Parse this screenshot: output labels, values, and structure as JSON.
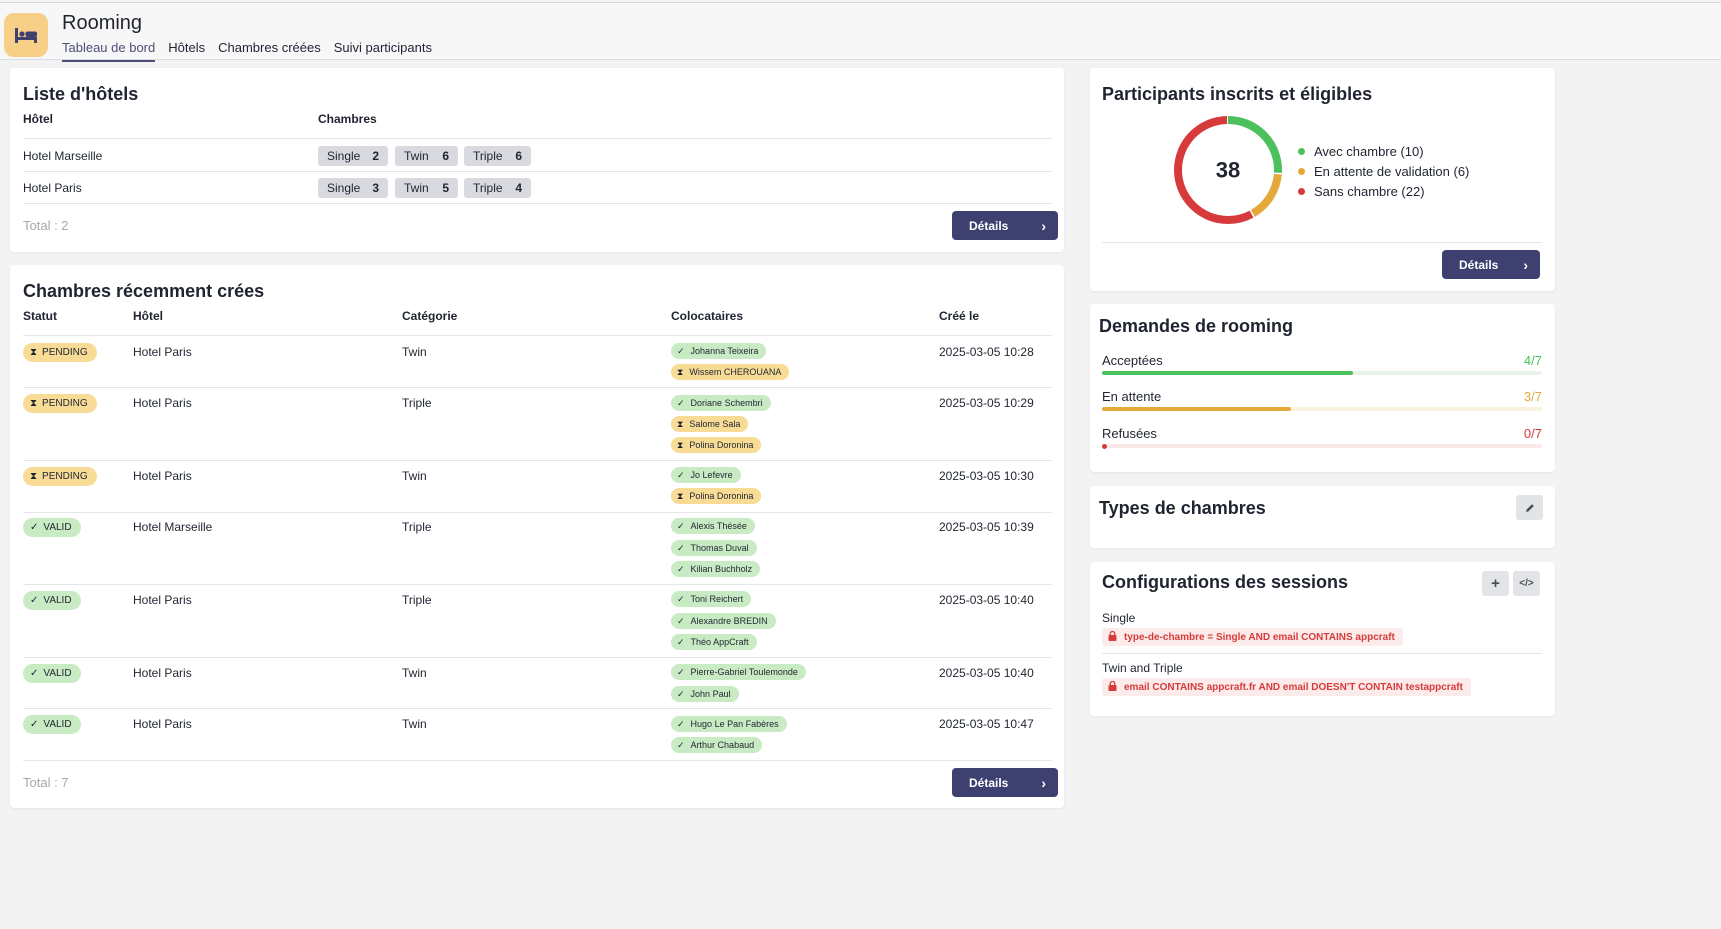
{
  "app": {
    "title": "Rooming",
    "tabs": [
      "Tableau de bord",
      "Hôtels",
      "Chambres créées",
      "Suivi participants"
    ]
  },
  "hotels_card": {
    "title": "Liste d'hôtels",
    "col_hotel": "Hôtel",
    "col_rooms": "Chambres",
    "rows": [
      {
        "name": "Hotel Marseille",
        "rooms": [
          {
            "type": "Single",
            "count": "2"
          },
          {
            "type": "Twin",
            "count": "6"
          },
          {
            "type": "Triple",
            "count": "6"
          }
        ]
      },
      {
        "name": "Hotel Paris",
        "rooms": [
          {
            "type": "Single",
            "count": "3"
          },
          {
            "type": "Twin",
            "count": "5"
          },
          {
            "type": "Triple",
            "count": "4"
          }
        ]
      }
    ],
    "total": "Total : 2",
    "details_label": "Détails"
  },
  "recent_card": {
    "title": "Chambres récemment crées",
    "col_status": "Statut",
    "col_hotel": "Hôtel",
    "col_category": "Catégorie",
    "col_mates": "Colocataires",
    "col_created": "Créé le",
    "rows": [
      {
        "status": "PENDING",
        "hotel": "Hotel Paris",
        "category": "Twin",
        "created": "2025-03-05 10:28",
        "mates": [
          {
            "name": "Johanna Teixeira",
            "state": "ok"
          },
          {
            "name": "Wissem CHEROUANA",
            "state": "wait"
          }
        ]
      },
      {
        "status": "PENDING",
        "hotel": "Hotel Paris",
        "category": "Triple",
        "created": "2025-03-05 10:29",
        "mates": [
          {
            "name": "Doriane Schembri",
            "state": "ok"
          },
          {
            "name": "Salome Sala",
            "state": "wait"
          },
          {
            "name": "Polina Doronina",
            "state": "wait"
          }
        ]
      },
      {
        "status": "PENDING",
        "hotel": "Hotel Paris",
        "category": "Twin",
        "created": "2025-03-05 10:30",
        "mates": [
          {
            "name": "Jo Lefevre",
            "state": "ok"
          },
          {
            "name": "Polina Doronina",
            "state": "wait"
          }
        ]
      },
      {
        "status": "VALID",
        "hotel": "Hotel Marseille",
        "category": "Triple",
        "created": "2025-03-05 10:39",
        "mates": [
          {
            "name": "Alexis Thésée",
            "state": "ok"
          },
          {
            "name": "Thomas Duval",
            "state": "ok"
          },
          {
            "name": "Kilian Buchholz",
            "state": "ok"
          }
        ]
      },
      {
        "status": "VALID",
        "hotel": "Hotel Paris",
        "category": "Triple",
        "created": "2025-03-05 10:40",
        "mates": [
          {
            "name": "Toni Reichert",
            "state": "ok"
          },
          {
            "name": "Alexandre BREDIN",
            "state": "ok"
          },
          {
            "name": "Théo AppCraft",
            "state": "ok"
          }
        ]
      },
      {
        "status": "VALID",
        "hotel": "Hotel Paris",
        "category": "Twin",
        "created": "2025-03-05 10:40",
        "mates": [
          {
            "name": "Pierre-Gabriel Toulemonde",
            "state": "ok"
          },
          {
            "name": "John Paul",
            "state": "ok"
          }
        ]
      },
      {
        "status": "VALID",
        "hotel": "Hotel Paris",
        "category": "Twin",
        "created": "2025-03-05 10:47",
        "mates": [
          {
            "name": "Hugo Le Pan Fabères",
            "state": "ok"
          },
          {
            "name": "Arthur Chabaud",
            "state": "ok"
          }
        ]
      }
    ],
    "total": "Total : 7",
    "details_label": "Détails"
  },
  "participants_card": {
    "title": "Participants inscrits et éligibles",
    "total": "38",
    "legend": [
      {
        "label": "Avec chambre (10)",
        "value": 10,
        "color": "#4cc05c"
      },
      {
        "label": "En attente de validation (6)",
        "value": 6,
        "color": "#e4a83b"
      },
      {
        "label": "Sans chambre (22)",
        "value": 22,
        "color": "#d63a3a"
      }
    ],
    "details_label": "Détails"
  },
  "requests_card": {
    "title": "Demandes de rooming",
    "items": [
      {
        "label": "Acceptées",
        "frac": "4/7",
        "ratio": 0.5714,
        "color": "#4cc05c",
        "track": "#e8f4e8"
      },
      {
        "label": "En attente",
        "frac": "3/7",
        "ratio": 0.4286,
        "color": "#e4a83b",
        "track": "#fbf2e2"
      },
      {
        "label": "Refusées",
        "frac": "0/7",
        "ratio": 0,
        "color": "#d63a3a",
        "track": "#fbe8e8"
      }
    ]
  },
  "types_card": {
    "title": "Types de chambres",
    "edit_icon": "pencil-icon"
  },
  "sessions_card": {
    "title": "Configurations des sessions",
    "add_icon": "plus-icon",
    "code_icon": "code-icon",
    "items": [
      {
        "label": "Single",
        "rule": "type-de-chambre = Single AND email CONTAINS appcraft"
      },
      {
        "label": "Twin and Triple",
        "rule": "email CONTAINS appcraft.fr AND email DOESN'T CONTAIN testappcraft"
      }
    ]
  }
}
